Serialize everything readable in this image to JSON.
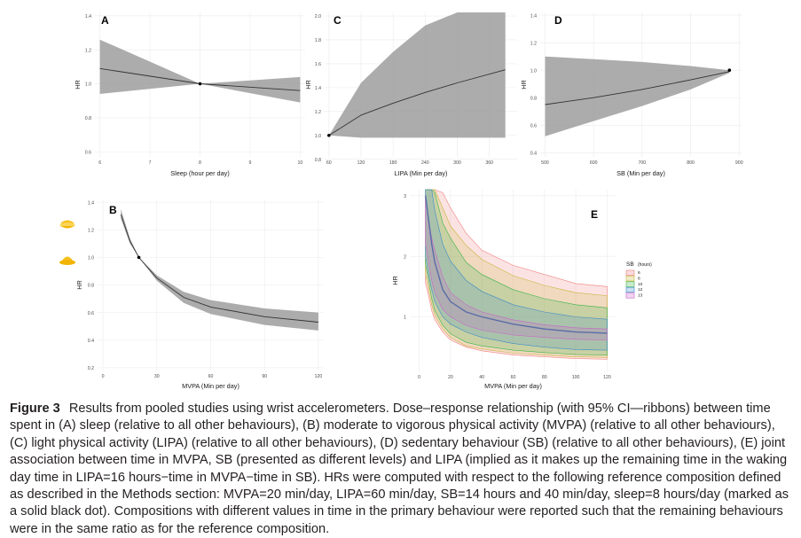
{
  "colors": {
    "ribbon": "#9d9d9d",
    "line": "#333333",
    "sb_6": "#f08080",
    "sb_8": "#c8b43c",
    "sb_10": "#3cb44b",
    "sb_12": "#3c8cc8",
    "sb_13": "#c864c8"
  },
  "icons": {
    "top": "sun-low-icon",
    "bottom": "sun-half-icon"
  },
  "caption": {
    "label": "Figure 3",
    "text": "Results from pooled studies using wrist accelerometers. Dose–response relationship (with 95% CI—ribbons) between time spent in (A) sleep (relative to all other behaviours), (B) moderate to vigorous physical activity (MVPA) (relative to all other behaviours), (C) light physical activity (LIPA) (relative to all other behaviours), (D) sedentary behaviour (SB) (relative to all other behaviours), (E) joint association between time in MVPA, SB (presented as different levels) and LIPA (implied as it makes up the remaining time in the waking day time in LIPA=16 hours−time in MVPA−time in SB). HRs were computed with respect to the following reference composition defined as described in the Methods section: MVPA=20 min/day, LIPA=60 min/day, SB=14 hours and 40 min/day, sleep=8 hours/day (marked as a solid black dot). Compositions with different values in time in the primary behaviour were reported such that the remaining behaviours were in the same ratio as for the reference composition."
  },
  "chart_data": [
    {
      "panel": "A",
      "type": "line",
      "xlabel": "Sleep (hour per day)",
      "ylabel": "HR",
      "xlim": [
        5.9,
        10.1
      ],
      "ylim": [
        0.57,
        1.42
      ],
      "xticks": [
        6,
        7,
        8,
        9,
        10
      ],
      "yticks": [
        0.6,
        0.8,
        1.0,
        1.2,
        1.4
      ],
      "xtick_labels": [
        "6",
        "7",
        "8",
        "9",
        "10"
      ],
      "ytick_labels": [
        "0.6",
        "0.8",
        "1.0",
        "1.2",
        "1.4"
      ],
      "x": [
        6,
        8,
        10
      ],
      "y": [
        1.09,
        1.0,
        0.96
      ],
      "lower": [
        0.94,
        1.0,
        0.89
      ],
      "upper": [
        1.26,
        1.0,
        1.04
      ],
      "reference": [
        8,
        1.0
      ]
    },
    {
      "panel": "B",
      "type": "line",
      "xlabel": "MVPA (Min per day)",
      "ylabel": "HR",
      "xlim": [
        -3,
        123
      ],
      "ylim": [
        0.18,
        1.42
      ],
      "xticks": [
        0,
        30,
        60,
        90,
        120
      ],
      "yticks": [
        0.2,
        0.4,
        0.6,
        0.8,
        1.0,
        1.2,
        1.4
      ],
      "xtick_labels": [
        "0",
        "30",
        "60",
        "90",
        "120"
      ],
      "ytick_labels": [
        "0.2",
        "0.4",
        "0.6",
        "0.8",
        "1.0",
        "1.2",
        "1.4"
      ],
      "x": [
        10,
        15,
        20,
        30,
        45,
        60,
        90,
        120
      ],
      "y": [
        1.31,
        1.12,
        1.0,
        0.85,
        0.71,
        0.64,
        0.57,
        0.53
      ],
      "lower": [
        1.28,
        1.1,
        1.0,
        0.83,
        0.67,
        0.59,
        0.51,
        0.47
      ],
      "upper": [
        1.35,
        1.14,
        1.0,
        0.87,
        0.75,
        0.69,
        0.63,
        0.6
      ],
      "reference": [
        20,
        1.0
      ]
    },
    {
      "panel": "C",
      "type": "line",
      "xlabel": "LIPA (Min per day)",
      "ylabel": "HR",
      "xlim": [
        52,
        412
      ],
      "ylim": [
        0.82,
        2.03
      ],
      "xticks": [
        60,
        120,
        180,
        240,
        300,
        360
      ],
      "yticks": [
        0.8,
        1.0,
        1.2,
        1.4,
        1.6,
        1.8,
        2.0
      ],
      "xtick_labels": [
        "60",
        "120",
        "180",
        "240",
        "300",
        "360"
      ],
      "ytick_labels": [
        "0.8",
        "1.0",
        "1.2",
        "1.4",
        "1.6",
        "1.8",
        "2.0"
      ],
      "x": [
        60,
        120,
        180,
        240,
        300,
        390
      ],
      "y": [
        1.0,
        1.17,
        1.27,
        1.36,
        1.44,
        1.55
      ],
      "lower": [
        1.0,
        0.98,
        0.98,
        0.98,
        0.98,
        0.98
      ],
      "upper": [
        1.0,
        1.44,
        1.7,
        1.92,
        2.03,
        2.03
      ],
      "reference": [
        60,
        1.0
      ]
    },
    {
      "panel": "D",
      "type": "line",
      "xlabel": "SB (Min per day)",
      "ylabel": "HR",
      "xlim": [
        490,
        905
      ],
      "ylim": [
        0.37,
        1.42
      ],
      "xticks": [
        500,
        600,
        700,
        800,
        900
      ],
      "yticks": [
        0.4,
        0.6,
        0.8,
        1.0,
        1.2,
        1.4
      ],
      "xtick_labels": [
        "500",
        "600",
        "700",
        "800",
        "900"
      ],
      "ytick_labels": [
        "0.4",
        "0.6",
        "0.8",
        "1.0",
        "1.2",
        "1.4"
      ],
      "x": [
        500,
        600,
        700,
        800,
        880
      ],
      "y": [
        0.75,
        0.8,
        0.86,
        0.93,
        0.99
      ],
      "lower": [
        0.52,
        0.63,
        0.74,
        0.86,
        0.98
      ],
      "upper": [
        1.1,
        1.08,
        1.06,
        1.03,
        1.0
      ],
      "reference": [
        880,
        1.0
      ]
    },
    {
      "panel": "E",
      "type": "line",
      "xlabel": "MVPA (Min per day)",
      "ylabel": "HR",
      "xlim": [
        -6,
        126
      ],
      "ylim": [
        0.1,
        3.1
      ],
      "xticks": [
        0,
        20,
        40,
        60,
        80,
        100,
        120
      ],
      "yticks": [
        1,
        2,
        3
      ],
      "xtick_labels": [
        "0",
        "20",
        "40",
        "60",
        "80",
        "100",
        "120"
      ],
      "ytick_labels": [
        "1",
        "2",
        "3"
      ],
      "x": [
        4,
        6,
        8,
        10,
        15,
        20,
        30,
        40,
        60,
        80,
        100,
        120
      ],
      "legend": {
        "title": "SB",
        "title_unit": "(hours)",
        "position": "right"
      },
      "series": [
        {
          "name": "6",
          "color_key": "sb_6",
          "lower": [
            1.55,
            1.35,
            1.1,
            0.95,
            0.75,
            0.62,
            0.5,
            0.44,
            0.37,
            0.34,
            0.31,
            0.3
          ],
          "upper": [
            3.2,
            3.2,
            3.2,
            3.2,
            3.05,
            2.8,
            2.38,
            2.1,
            1.85,
            1.7,
            1.55,
            1.5
          ]
        },
        {
          "name": "8",
          "color_key": "sb_8",
          "lower": [
            1.7,
            1.45,
            1.2,
            1.02,
            0.8,
            0.66,
            0.52,
            0.47,
            0.4,
            0.37,
            0.34,
            0.33
          ],
          "upper": [
            3.2,
            3.2,
            3.2,
            3.2,
            2.8,
            2.5,
            2.18,
            1.95,
            1.68,
            1.52,
            1.4,
            1.35
          ]
        },
        {
          "name": "10",
          "color_key": "sb_10",
          "lower": [
            1.85,
            1.6,
            1.3,
            1.1,
            0.86,
            0.72,
            0.58,
            0.52,
            0.45,
            0.41,
            0.38,
            0.37
          ],
          "upper": [
            3.2,
            3.2,
            3.2,
            3.05,
            2.55,
            2.3,
            1.9,
            1.7,
            1.45,
            1.3,
            1.2,
            1.15
          ]
        },
        {
          "name": "12",
          "color_key": "sb_12",
          "lower": [
            2.0,
            1.7,
            1.45,
            1.25,
            1.0,
            0.88,
            0.75,
            0.66,
            0.56,
            0.5,
            0.46,
            0.45
          ],
          "upper": [
            3.2,
            3.2,
            3.1,
            2.75,
            2.2,
            1.92,
            1.6,
            1.42,
            1.2,
            1.08,
            1.0,
            0.96
          ]
        },
        {
          "name": "13",
          "color_key": "sb_13",
          "lower": [
            2.2,
            1.9,
            1.6,
            1.4,
            1.12,
            1.0,
            0.86,
            0.78,
            0.7,
            0.66,
            0.63,
            0.62
          ],
          "upper": [
            3.0,
            2.6,
            2.3,
            2.1,
            1.66,
            1.4,
            1.2,
            1.08,
            0.95,
            0.87,
            0.82,
            0.8
          ]
        }
      ],
      "mid": [
        3.0,
        2.6,
        2.2,
        1.9,
        1.45,
        1.25,
        1.08,
        1.0,
        0.88,
        0.8,
        0.75,
        0.73
      ]
    }
  ]
}
